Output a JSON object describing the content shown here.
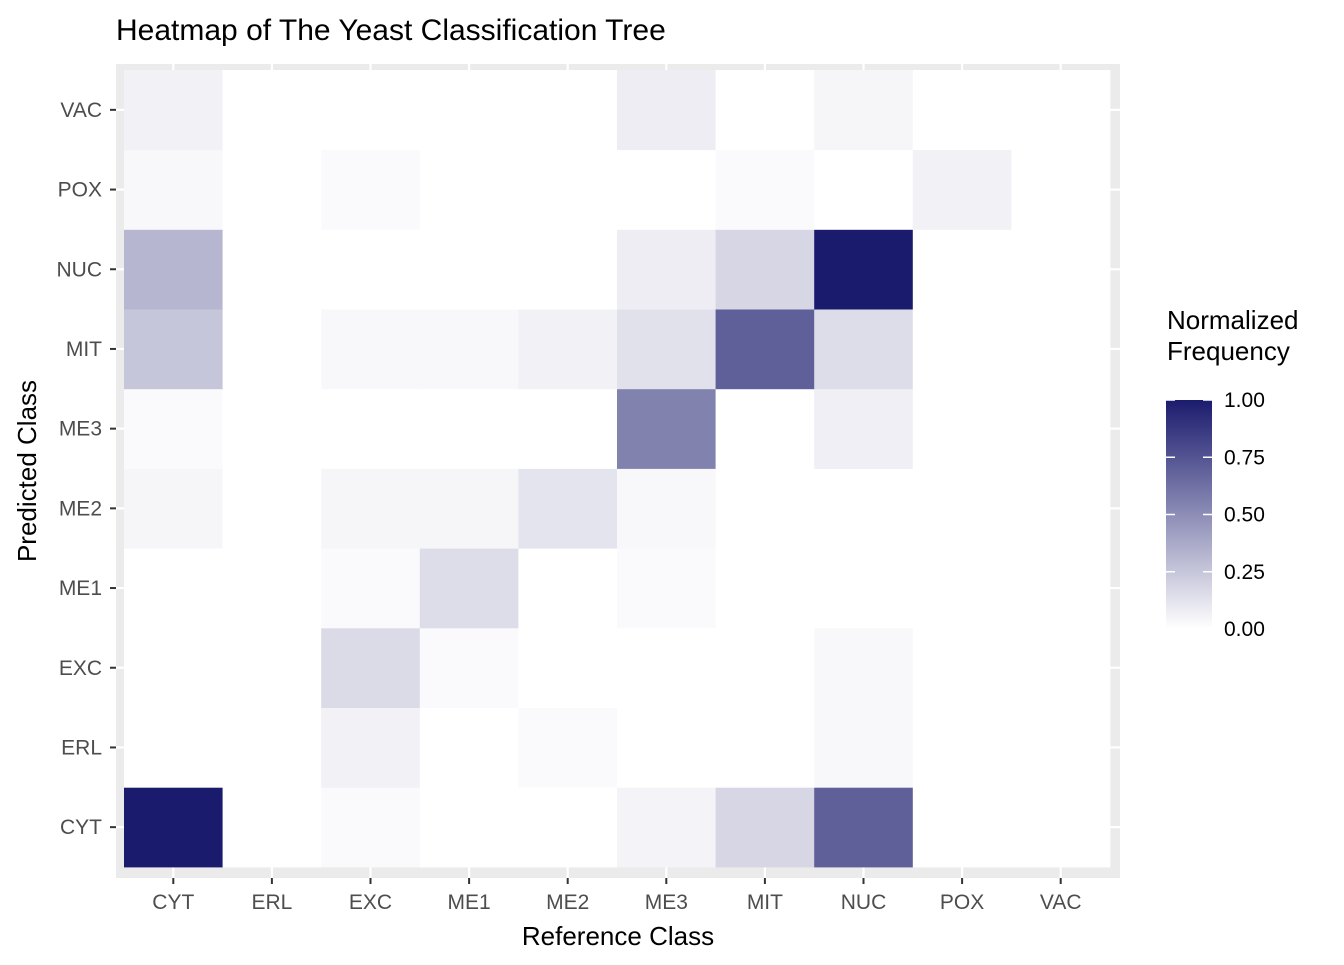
{
  "chart_data": {
    "type": "heatmap",
    "title": "Heatmap of The Yeast Classification Tree",
    "xlabel": "Reference Class",
    "ylabel": "Predicted Class",
    "x_categories": [
      "CYT",
      "ERL",
      "EXC",
      "ME1",
      "ME2",
      "ME3",
      "MIT",
      "NUC",
      "POX",
      "VAC"
    ],
    "y_categories": [
      "CYT",
      "ERL",
      "EXC",
      "ME1",
      "ME2",
      "ME3",
      "MIT",
      "NUC",
      "POX",
      "VAC"
    ],
    "values": [
      [
        1.0,
        0.0,
        0.02,
        0.0,
        0.0,
        0.05,
        0.18,
        0.7,
        0.0,
        0.0
      ],
      [
        0.0,
        0.0,
        0.06,
        0.0,
        0.02,
        0.0,
        0.0,
        0.03,
        0.0,
        0.0
      ],
      [
        0.0,
        0.0,
        0.16,
        0.02,
        0.0,
        0.0,
        0.0,
        0.03,
        0.0,
        0.0
      ],
      [
        0.0,
        0.0,
        0.02,
        0.15,
        0.0,
        0.02,
        0.0,
        0.0,
        0.0,
        0.0
      ],
      [
        0.04,
        0.0,
        0.04,
        0.04,
        0.12,
        0.03,
        0.0,
        0.0,
        0.0,
        0.0
      ],
      [
        0.02,
        0.0,
        0.0,
        0.0,
        0.0,
        0.55,
        0.0,
        0.07,
        0.0,
        0.0
      ],
      [
        0.25,
        0.0,
        0.03,
        0.03,
        0.06,
        0.13,
        0.7,
        0.15,
        0.0,
        0.0
      ],
      [
        0.32,
        0.0,
        0.0,
        0.0,
        0.0,
        0.08,
        0.18,
        1.0,
        0.0,
        0.0
      ],
      [
        0.03,
        0.0,
        0.02,
        0.0,
        0.0,
        0.0,
        0.02,
        0.0,
        0.06,
        0.0
      ],
      [
        0.06,
        0.0,
        0.0,
        0.0,
        0.0,
        0.08,
        0.0,
        0.04,
        0.0,
        0.0
      ]
    ],
    "zlim": [
      0,
      1
    ],
    "color_low": "#ffffff",
    "color_high": "#1b1b6e",
    "legend": {
      "title_lines": [
        "Normalized",
        "Frequency"
      ],
      "tick_values": [
        0,
        0.25,
        0.5,
        0.75,
        1
      ],
      "tick_labels": [
        "0.00",
        "0.25",
        "0.50",
        "0.75",
        "1.00"
      ],
      "position": "right"
    },
    "panel_background": "#ebebeb",
    "grid": true
  }
}
